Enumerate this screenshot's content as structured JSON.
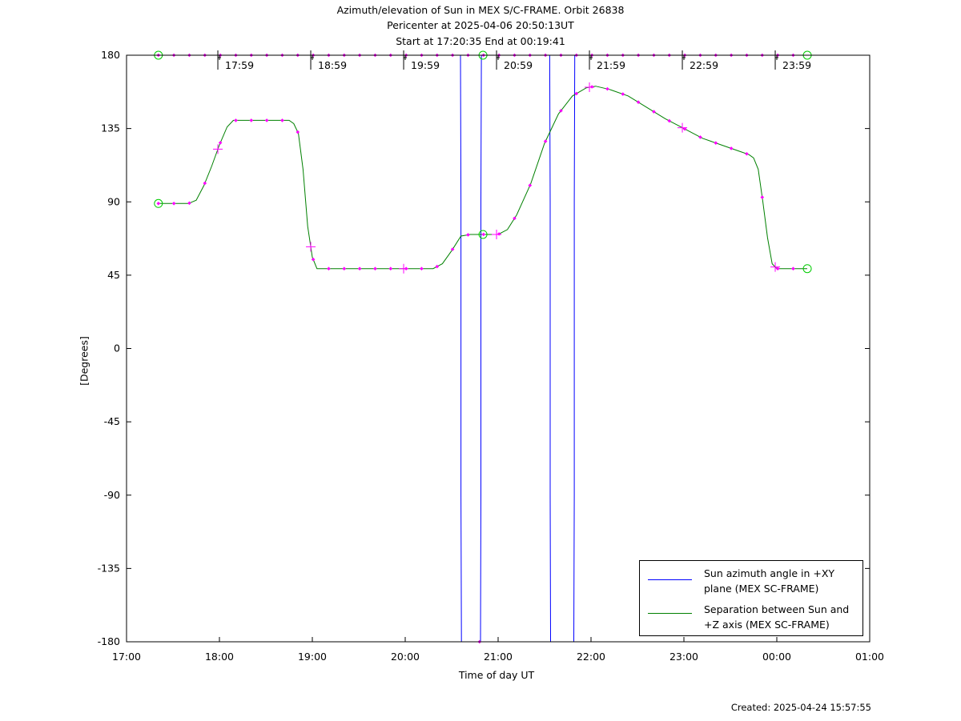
{
  "header": {
    "title1": "Azimuth/elevation of Sun in MEX S/C-FRAME.  Orbit 26838",
    "title2": "Pericenter at 2025-04-06 20:50:13UT",
    "title3": "Start at 17:20:35 End at 00:19:41"
  },
  "footer": {
    "created": "Created: 2025-04-24 15:57:55"
  },
  "colors": {
    "azimuth": "#0000ff",
    "separation": "#008000",
    "marker": "#ff00ff",
    "event": "#00cc00"
  },
  "chart_data": {
    "type": "line",
    "xlabel": "Time of day UT",
    "ylabel": "[Degrees]",
    "xlim": [
      17.0,
      25.0
    ],
    "ylim": [
      -180,
      180
    ],
    "x_ticks": [
      17,
      18,
      19,
      20,
      21,
      22,
      23,
      24,
      25
    ],
    "x_tick_labels": [
      "17:00",
      "18:00",
      "19:00",
      "20:00",
      "21:00",
      "22:00",
      "23:00",
      "00:00",
      "01:00"
    ],
    "y_ticks": [
      180,
      135,
      90,
      45,
      0,
      -45,
      -90,
      -135,
      -180
    ],
    "y_tick_labels": [
      "180",
      "135",
      "90",
      "45",
      "0",
      "-45",
      "-90",
      "-135",
      "-180"
    ],
    "top_time_labels": [
      "17:59",
      "18:59",
      "19:59",
      "20:59",
      "21:59",
      "22:59",
      "23:59"
    ],
    "top_time_positions": [
      17.983,
      18.983,
      19.983,
      20.983,
      21.983,
      22.983,
      23.983
    ],
    "legend_position": "bottom-right",
    "grid": false,
    "series": [
      {
        "name": "Sun azimuth angle in +XY plane (MEX SC-FRAME)",
        "color": "#0000ff",
        "x": [
          17.343,
          20.595,
          20.6,
          20.6,
          20.605,
          20.81,
          20.815,
          20.815,
          20.82,
          21.555,
          21.56,
          21.56,
          21.565,
          21.815,
          21.82,
          21.82,
          21.825,
          24.328
        ],
        "y": [
          180,
          180,
          90,
          -90,
          -180,
          -180,
          -90,
          90,
          180,
          180,
          90,
          -90,
          -180,
          -180,
          -90,
          90,
          180,
          180
        ]
      },
      {
        "name": "Separation between Sun and +Z axis (MEX SC-FRAME)",
        "color": "#008000",
        "x": [
          17.343,
          17.5,
          17.667,
          17.75,
          17.833,
          17.917,
          18.0,
          18.083,
          18.15,
          18.3,
          18.45,
          18.6,
          18.75,
          18.8,
          18.85,
          18.9,
          18.95,
          19.0,
          19.05,
          19.15,
          19.3,
          19.5,
          19.7,
          19.9,
          20.1,
          20.3,
          20.4,
          20.5,
          20.6,
          20.7,
          20.84,
          21.0,
          21.1,
          21.2,
          21.35,
          21.5,
          21.65,
          21.8,
          21.95,
          22.05,
          22.2,
          22.4,
          22.6,
          22.8,
          23.0,
          23.2,
          23.4,
          23.6,
          23.7,
          23.75,
          23.8,
          23.85,
          23.9,
          23.95,
          24.0,
          24.1,
          24.328
        ],
        "y": [
          89,
          89,
          89,
          91,
          100,
          112,
          125,
          136,
          140,
          140,
          140,
          140,
          140,
          138,
          132,
          110,
          75,
          56,
          49,
          49,
          49,
          49,
          49,
          49,
          49,
          49,
          52,
          60,
          69,
          70,
          70,
          70,
          73,
          82,
          101,
          126,
          144,
          155,
          160,
          161,
          159,
          155,
          148,
          141,
          135,
          129,
          125,
          121,
          119,
          117,
          110,
          90,
          68,
          52,
          49,
          49,
          49
        ]
      }
    ]
  }
}
